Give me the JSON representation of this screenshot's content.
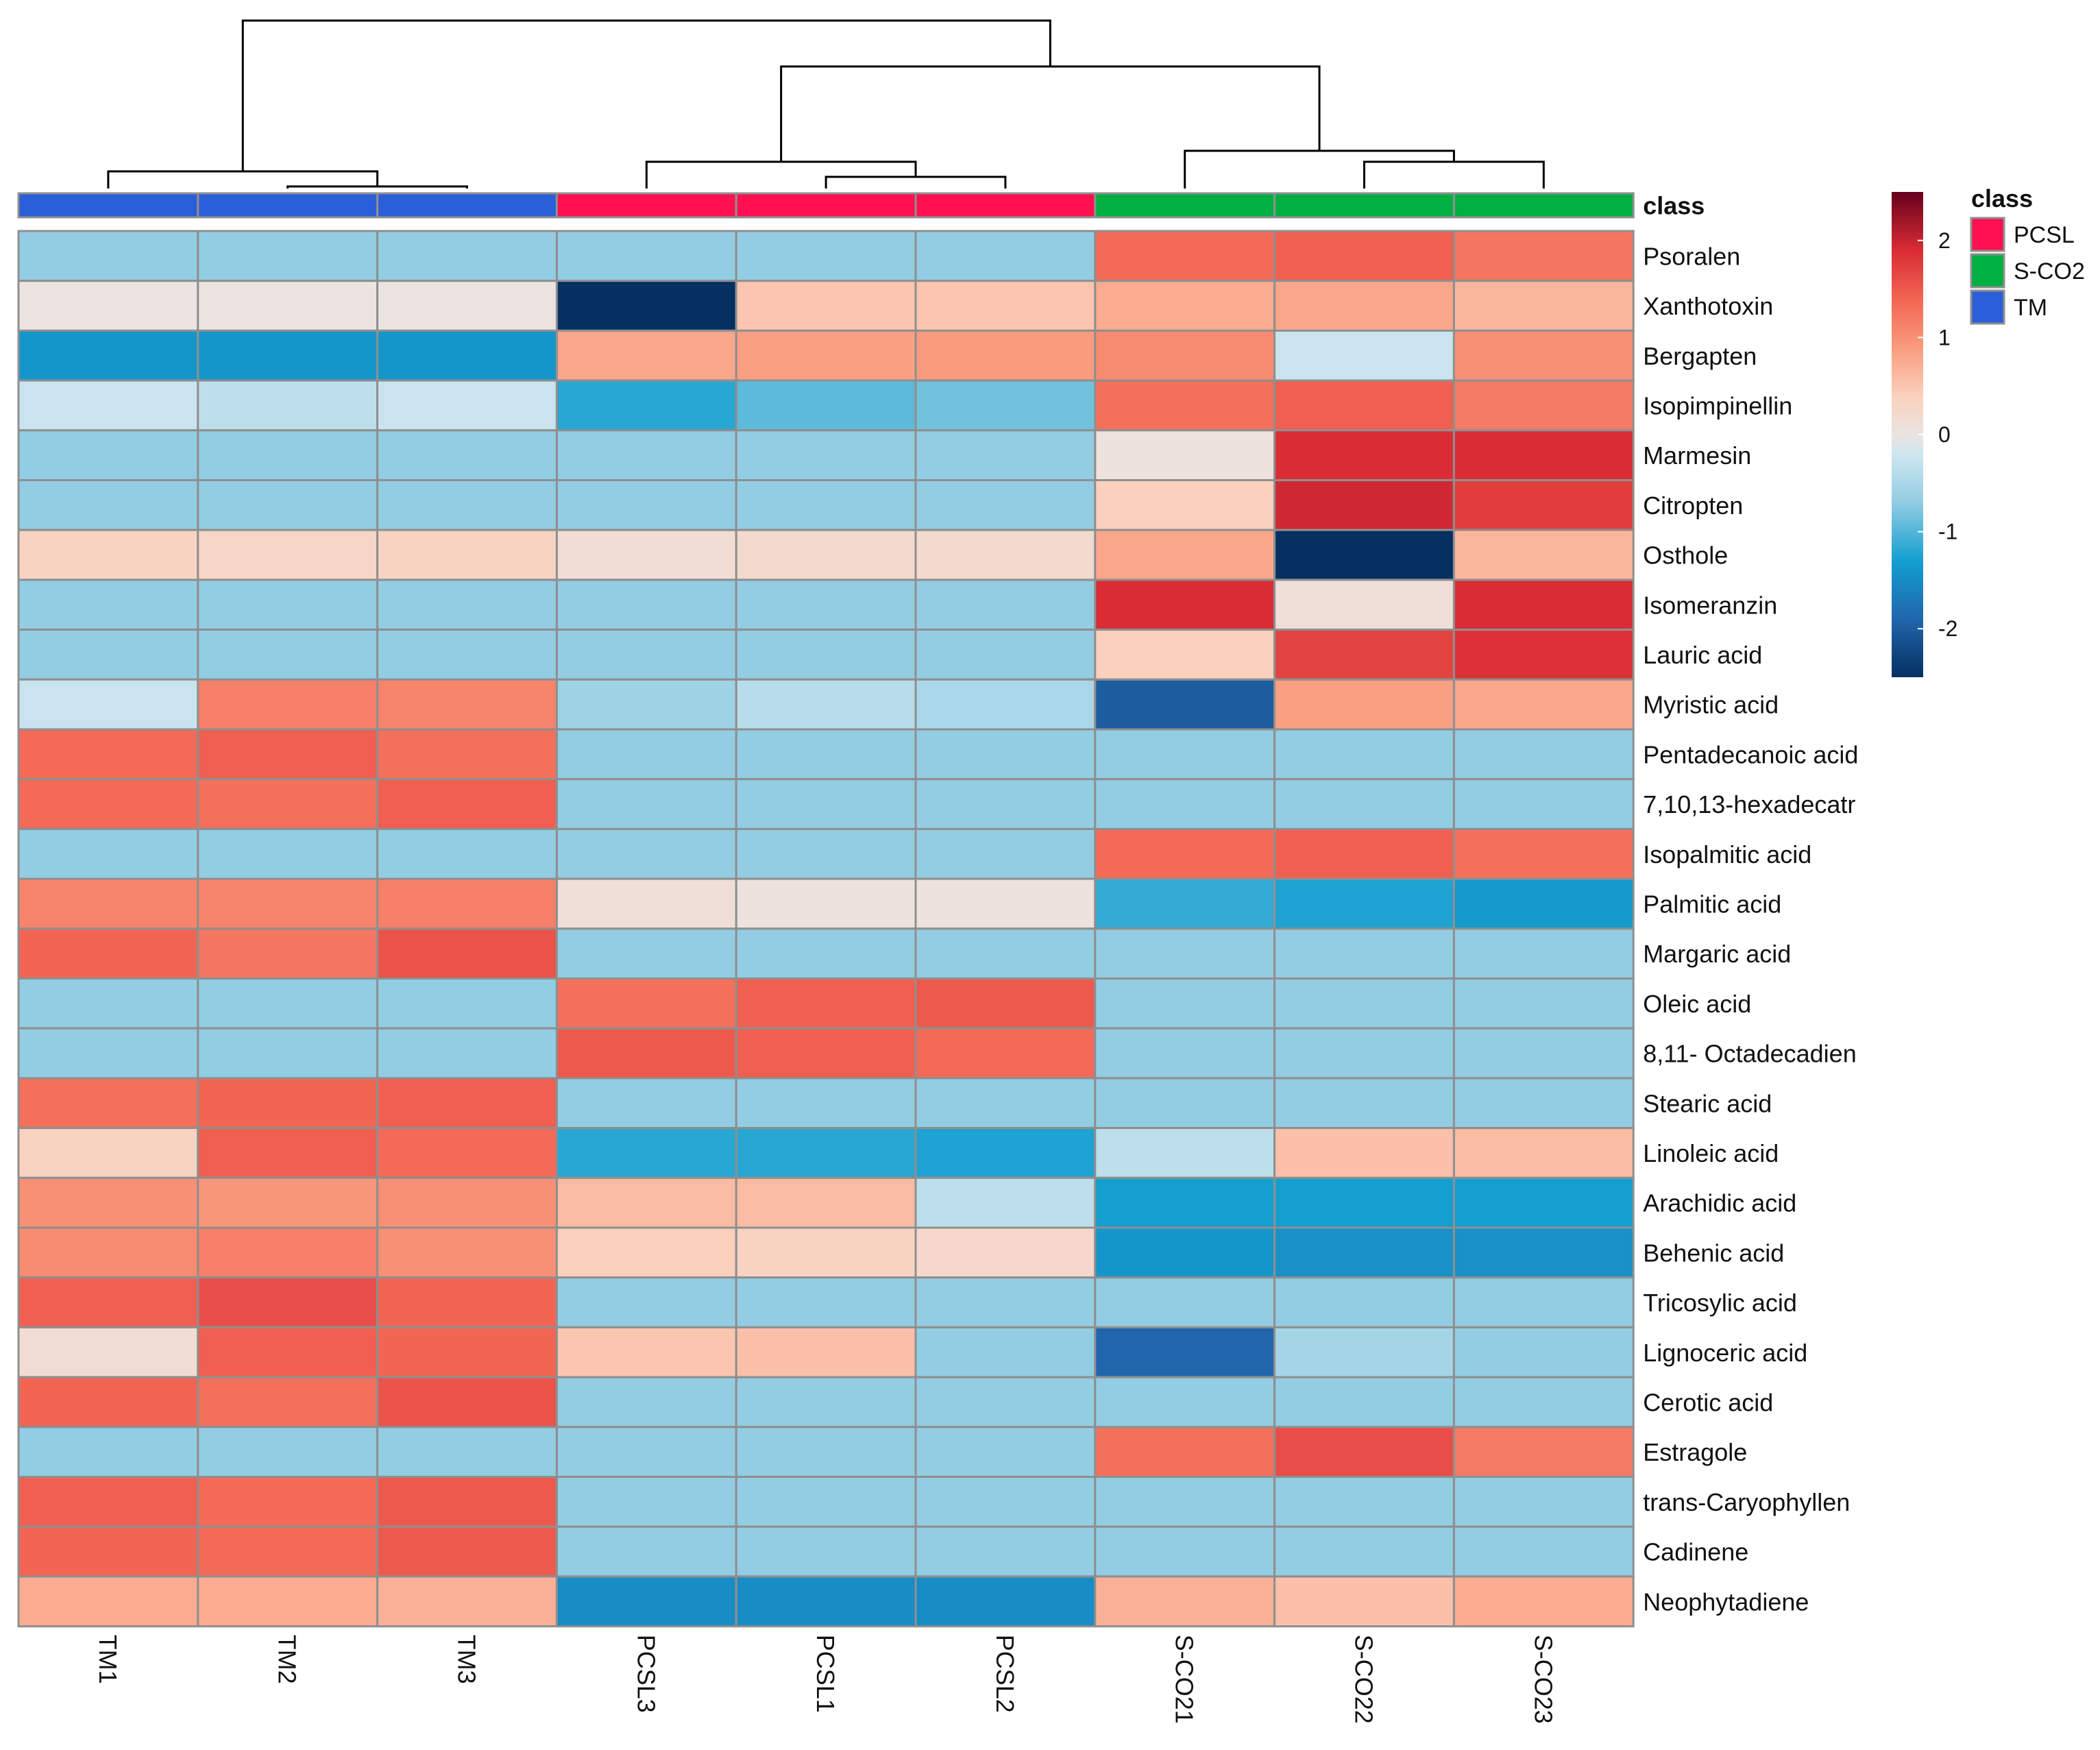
{
  "chart_data": {
    "type": "heatmap",
    "title": "",
    "value_range": [
      -2.5,
      2.5
    ],
    "color_scale": {
      "ticks": [
        2,
        1,
        0,
        -1,
        -2
      ],
      "tick_labels": [
        "2",
        "1",
        "0",
        "-1",
        "-2"
      ],
      "stops": [
        {
          "value": -2.5,
          "color": "#053061"
        },
        {
          "value": -1.9,
          "color": "#2166ac"
        },
        {
          "value": -1.3,
          "color": "#139fd0"
        },
        {
          "value": -0.7,
          "color": "#92cde3"
        },
        {
          "value": -0.2,
          "color": "#cfe6ef"
        },
        {
          "value": 0.0,
          "color": "#ebe4e1"
        },
        {
          "value": 0.4,
          "color": "#fbd0bd"
        },
        {
          "value": 0.9,
          "color": "#f99b7d"
        },
        {
          "value": 1.4,
          "color": "#f26553"
        },
        {
          "value": 1.9,
          "color": "#d92c34"
        },
        {
          "value": 2.5,
          "color": "#67001f"
        }
      ]
    },
    "columns": [
      "TM1",
      "TM2",
      "TM3",
      "PCSL3",
      "PCSL1",
      "PCSL2",
      "S-CO21",
      "S-CO22",
      "S-CO23"
    ],
    "column_classes": [
      "TM",
      "TM",
      "TM",
      "PCSL",
      "PCSL",
      "PCSL",
      "S-CO2",
      "S-CO2",
      "S-CO2"
    ],
    "class_annotation_label": "class",
    "legend": {
      "title": "class",
      "items": [
        {
          "label": "PCSL",
          "color": "#ff1050"
        },
        {
          "label": "S-CO2",
          "color": "#00b040"
        },
        {
          "label": "TM",
          "color": "#2b5fd9"
        }
      ]
    },
    "rows": [
      "Psoralen",
      "Xanthotoxin",
      "Bergapten",
      "Isopimpinellin",
      "Marmesin",
      "Citropten",
      "Osthole",
      "Isomeranzin",
      "Lauric acid",
      "Myristic acid",
      "Pentadecanoic acid",
      "7,10,13-hexadecatr",
      "Isopalmitic acid",
      "Palmitic acid",
      "Margaric acid",
      "Oleic acid",
      "8,11- Octadecadien",
      "Stearic acid",
      "Linoleic acid",
      "Arachidic acid",
      "Behenic acid",
      "Tricosylic acid",
      "Lignoceric acid",
      "Cerotic acid",
      "Estragole",
      "trans-Caryophyllen",
      "Cadinene",
      "Neophytadiene"
    ],
    "values": [
      [
        -0.7,
        -0.7,
        -0.7,
        -0.7,
        -0.7,
        -0.7,
        1.35,
        1.45,
        1.25
      ],
      [
        0.0,
        0.0,
        0.0,
        -2.5,
        0.5,
        0.5,
        0.75,
        0.8,
        0.65
      ],
      [
        -1.4,
        -1.4,
        -1.4,
        0.8,
        0.85,
        0.9,
        1.05,
        -0.25,
        1.0
      ],
      [
        -0.25,
        -0.35,
        -0.25,
        -1.2,
        -0.95,
        -0.85,
        1.3,
        1.45,
        1.2
      ],
      [
        -0.7,
        -0.7,
        -0.7,
        -0.7,
        -0.7,
        -0.7,
        0.05,
        1.9,
        1.9
      ],
      [
        -0.7,
        -0.7,
        -0.7,
        -0.7,
        -0.7,
        -0.7,
        0.4,
        1.95,
        1.75
      ],
      [
        0.35,
        0.3,
        0.35,
        0.15,
        0.2,
        0.2,
        0.8,
        -2.5,
        0.65
      ],
      [
        -0.7,
        -0.7,
        -0.7,
        -0.7,
        -0.7,
        -0.7,
        1.9,
        0.1,
        1.9
      ],
      [
        -0.7,
        -0.7,
        -0.7,
        -0.7,
        -0.7,
        -0.7,
        0.4,
        1.7,
        1.85
      ],
      [
        -0.25,
        1.15,
        1.1,
        -0.6,
        -0.4,
        -0.5,
        -2.0,
        0.85,
        0.8
      ],
      [
        1.35,
        1.45,
        1.3,
        -0.7,
        -0.7,
        -0.7,
        -0.7,
        -0.7,
        -0.7
      ],
      [
        1.35,
        1.3,
        1.45,
        -0.7,
        -0.7,
        -0.7,
        -0.7,
        -0.7,
        -0.7
      ],
      [
        -0.7,
        -0.7,
        -0.7,
        -0.7,
        -0.7,
        -0.7,
        1.35,
        1.45,
        1.3
      ],
      [
        1.1,
        1.1,
        1.15,
        0.1,
        0.05,
        0.05,
        -1.15,
        -1.25,
        -1.35
      ],
      [
        1.4,
        1.25,
        1.55,
        -0.7,
        -0.7,
        -0.7,
        -0.7,
        -0.7,
        -0.7
      ],
      [
        -0.7,
        -0.7,
        -0.7,
        1.3,
        1.45,
        1.5,
        -0.7,
        -0.7,
        -0.7
      ],
      [
        -0.7,
        -0.7,
        -0.7,
        1.5,
        1.45,
        1.35,
        -0.7,
        -0.7,
        -0.7
      ],
      [
        1.3,
        1.4,
        1.45,
        -0.7,
        -0.7,
        -0.7,
        -0.7,
        -0.7,
        -0.7
      ],
      [
        0.35,
        1.45,
        1.35,
        -1.2,
        -1.2,
        -1.25,
        -0.35,
        0.55,
        0.6
      ],
      [
        1.0,
        0.95,
        1.0,
        0.6,
        0.6,
        -0.35,
        -1.3,
        -1.3,
        -1.3
      ],
      [
        1.05,
        1.15,
        1.0,
        0.4,
        0.35,
        0.25,
        -1.4,
        -1.45,
        -1.45
      ],
      [
        1.45,
        1.6,
        1.4,
        -0.7,
        -0.7,
        -0.7,
        -0.7,
        -0.7,
        -0.7
      ],
      [
        0.15,
        1.45,
        1.4,
        0.5,
        0.55,
        -0.7,
        -1.9,
        -0.55,
        -0.7
      ],
      [
        1.4,
        1.3,
        1.55,
        -0.7,
        -0.7,
        -0.7,
        -0.7,
        -0.7,
        -0.7
      ],
      [
        -0.7,
        -0.7,
        -0.7,
        -0.7,
        -0.7,
        -0.7,
        1.3,
        1.6,
        1.2
      ],
      [
        1.45,
        1.35,
        1.5,
        -0.7,
        -0.7,
        -0.7,
        -0.7,
        -0.7,
        -0.7
      ],
      [
        1.4,
        1.35,
        1.5,
        -0.7,
        -0.7,
        -0.7,
        -0.7,
        -0.7,
        -0.7
      ],
      [
        0.75,
        0.75,
        0.7,
        -1.5,
        -1.5,
        -1.5,
        0.7,
        0.55,
        0.75
      ]
    ]
  }
}
